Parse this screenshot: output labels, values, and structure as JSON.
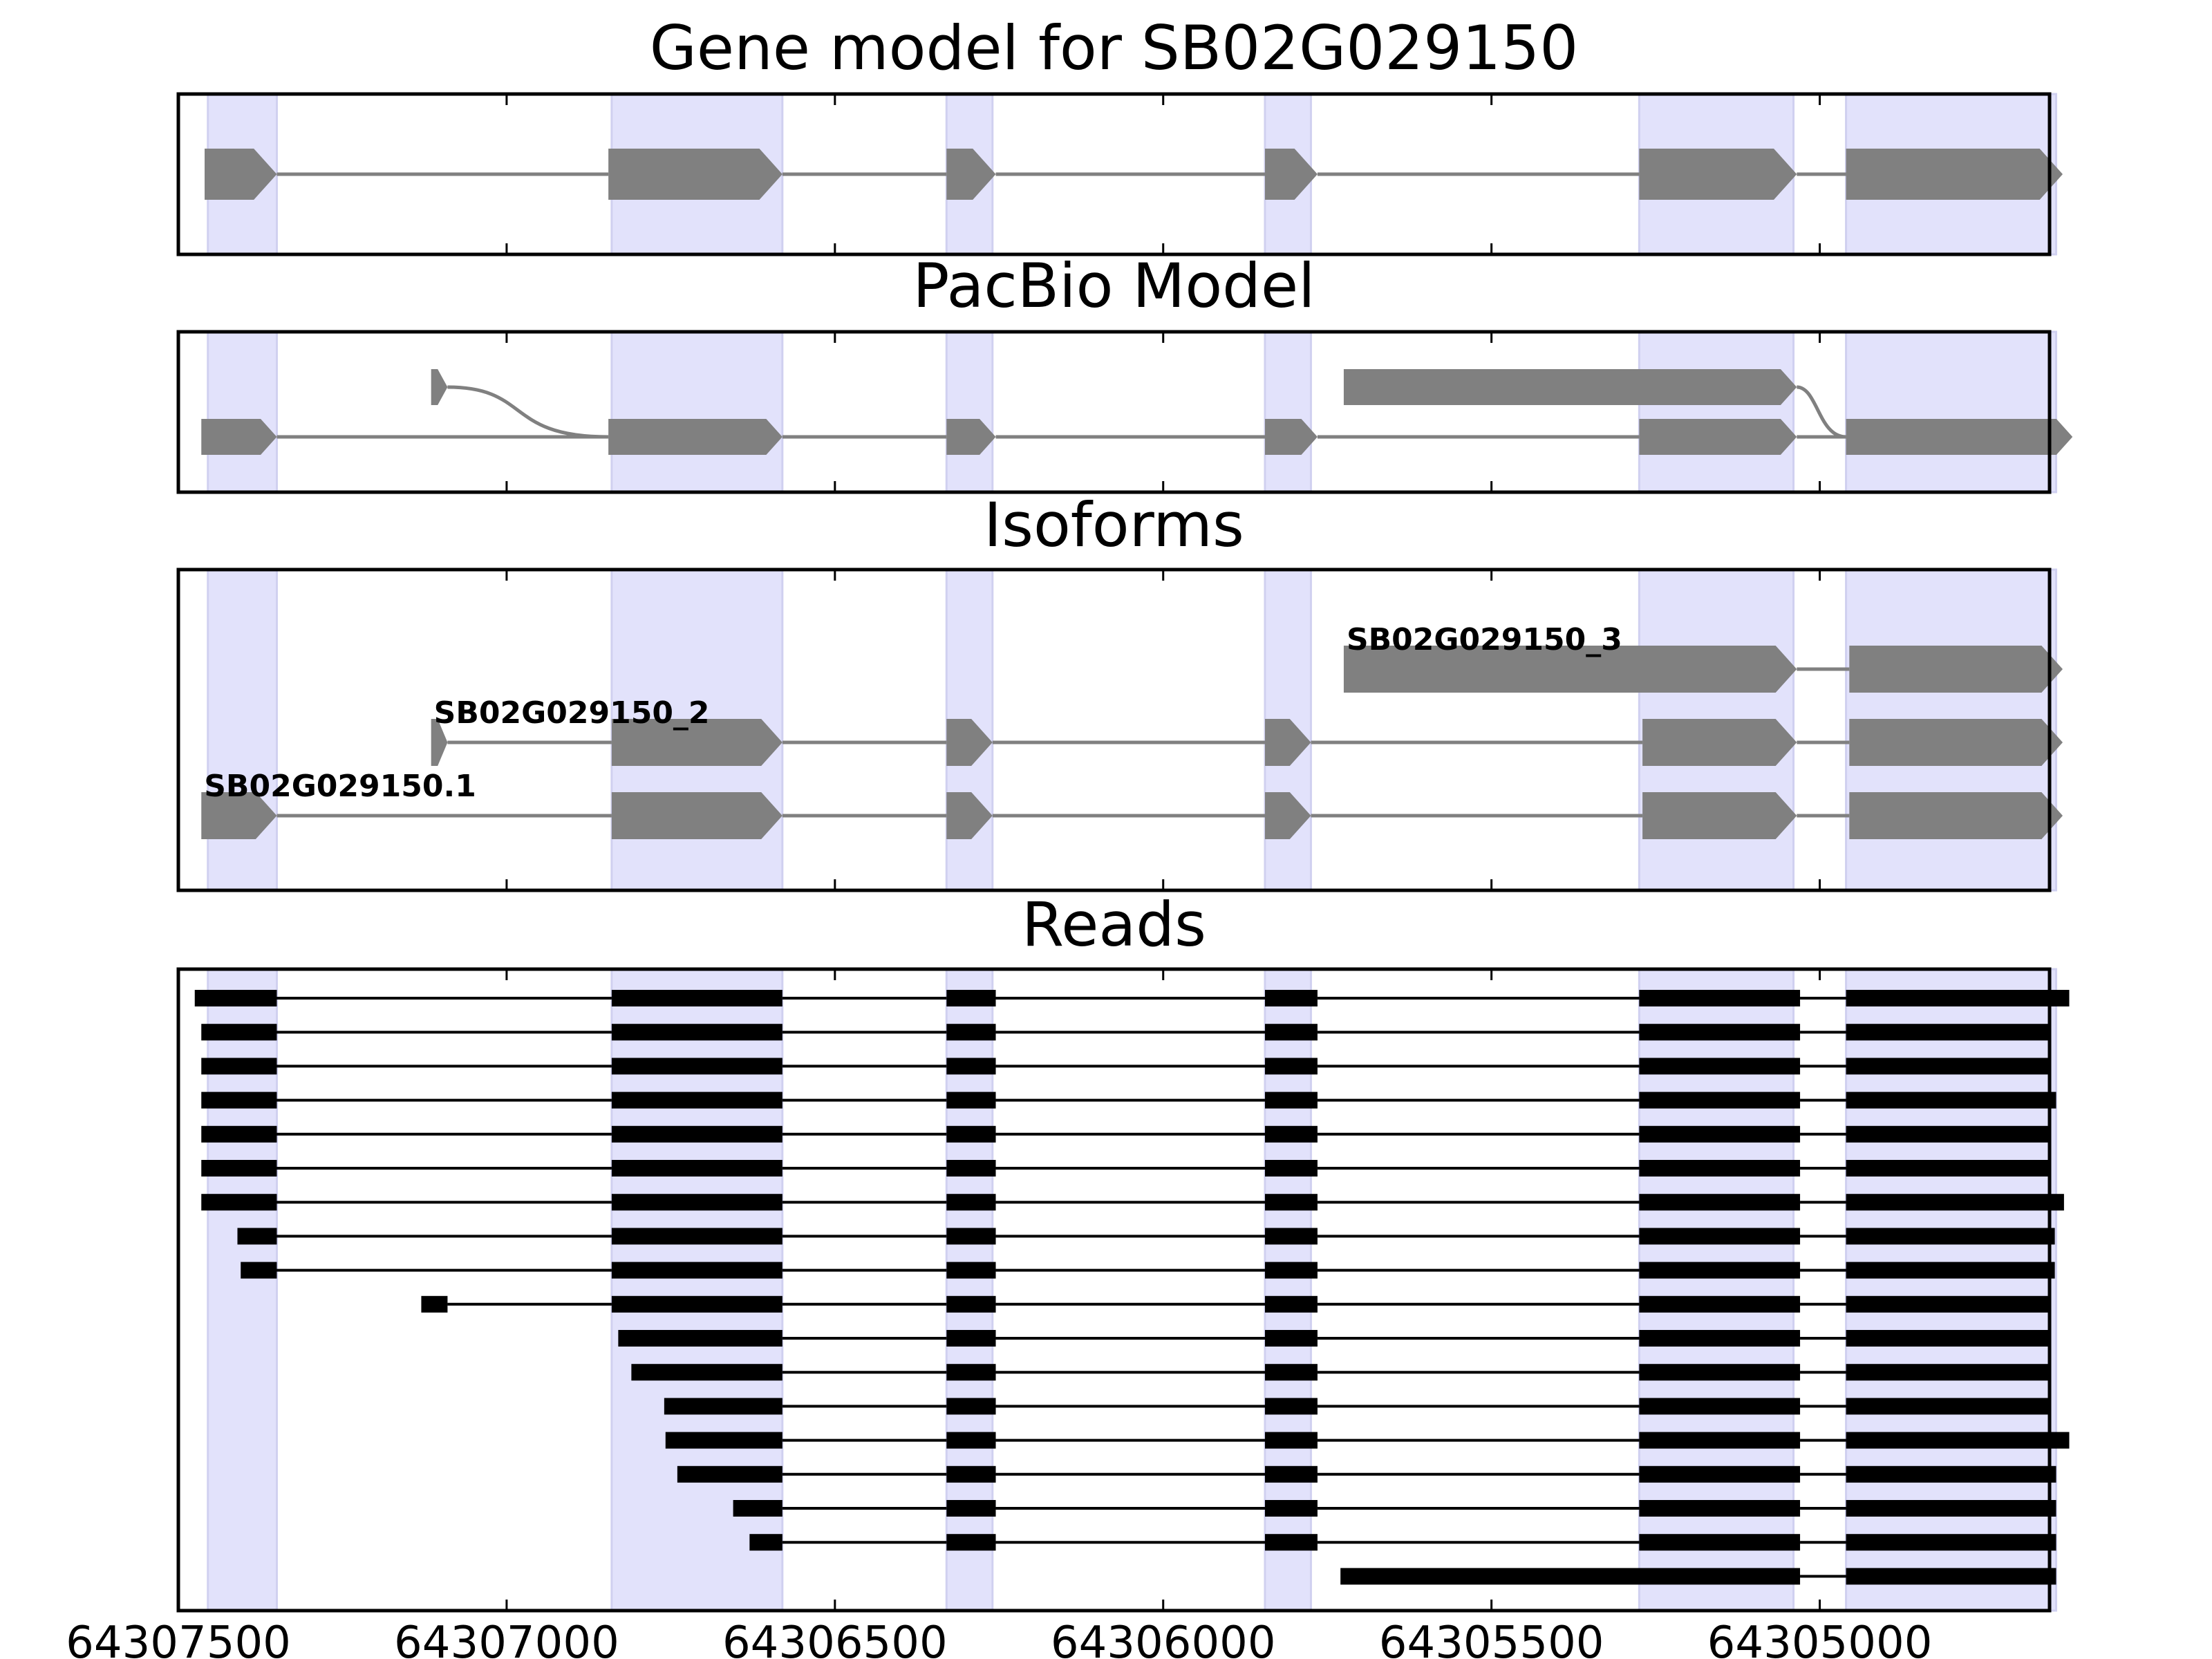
{
  "colors": {
    "exon_band": "#e2e2fb",
    "exon_band_edge": "#d0d0f0",
    "model_feature": "#808080",
    "read": "#000000",
    "frame": "#000000"
  },
  "chart_data": {
    "type": "gene-track",
    "x_axis": {
      "range": [
        64307500,
        64304650
      ],
      "reversed": true,
      "ticks": [
        64307500,
        64307000,
        64306500,
        64306000,
        64305500,
        64305000
      ],
      "tick_labels": [
        "64307500",
        "64307000",
        "64306500",
        "64306000",
        "64305500",
        "64305000"
      ]
    },
    "exon_regions": [
      [
        64307455,
        64307350
      ],
      [
        64306840,
        64306580
      ],
      [
        64306330,
        64306260
      ],
      [
        64305845,
        64305775
      ],
      [
        64305275,
        64305040
      ],
      [
        64304960,
        64304640
      ]
    ],
    "panels": [
      {
        "title": "Gene model for SB02G029150",
        "transcripts": [
          {
            "label": "",
            "exons": [
              [
                64307460,
                64307350
              ],
              [
                64306845,
                64306580
              ],
              [
                64306330,
                64306255
              ],
              [
                64305845,
                64305765
              ],
              [
                64305275,
                64305035
              ],
              [
                64304960,
                64304630
              ]
            ]
          }
        ]
      },
      {
        "title": "PacBio Model",
        "transcripts": [
          {
            "label": "",
            "exons": [
              [
                64307465,
                64307350
              ],
              [
                64306845,
                64306580
              ],
              [
                64306330,
                64306255
              ],
              [
                64305845,
                64305765
              ],
              [
                64305275,
                64305035
              ],
              [
                64304960,
                64304615
              ]
            ]
          },
          {
            "label": "",
            "exons": [
              [
                64307115,
                64307090
              ],
              [
                64305725,
                64305035
              ]
            ]
          }
        ]
      },
      {
        "title": "Isoforms",
        "transcripts": [
          {
            "label": "SB02G029150.1",
            "exons": [
              [
                64307465,
                64307350
              ],
              [
                64306840,
                64306580
              ],
              [
                64306330,
                64306260
              ],
              [
                64305845,
                64305775
              ],
              [
                64305270,
                64305035
              ],
              [
                64304955,
                64304630
              ]
            ]
          },
          {
            "label": "SB02G029150_2",
            "exons": [
              [
                64307115,
                64307090
              ],
              [
                64306840,
                64306580
              ],
              [
                64306330,
                64306260
              ],
              [
                64305845,
                64305775
              ],
              [
                64305270,
                64305035
              ],
              [
                64304955,
                64304630
              ]
            ]
          },
          {
            "label": "SB02G029150_3",
            "exons": [
              [
                64305725,
                64305035
              ],
              [
                64304955,
                64304630
              ]
            ]
          }
        ]
      },
      {
        "title": "Reads",
        "reads": [
          {
            "exons": [
              [
                64307475,
                64307350
              ],
              [
                64306840,
                64306580
              ],
              [
                64306330,
                64306255
              ],
              [
                64305845,
                64305765
              ],
              [
                64305275,
                64305030
              ],
              [
                64304960,
                64304620
              ]
            ]
          },
          {
            "exons": [
              [
                64307465,
                64307350
              ],
              [
                64306840,
                64306580
              ],
              [
                64306330,
                64306255
              ],
              [
                64305845,
                64305765
              ],
              [
                64305275,
                64305030
              ],
              [
                64304960,
                64304650
              ]
            ]
          },
          {
            "exons": [
              [
                64307465,
                64307350
              ],
              [
                64306840,
                64306580
              ],
              [
                64306330,
                64306255
              ],
              [
                64305845,
                64305765
              ],
              [
                64305275,
                64305030
              ],
              [
                64304960,
                64304648
              ]
            ]
          },
          {
            "exons": [
              [
                64307465,
                64307350
              ],
              [
                64306840,
                64306580
              ],
              [
                64306330,
                64306255
              ],
              [
                64305845,
                64305765
              ],
              [
                64305275,
                64305030
              ],
              [
                64304960,
                64304640
              ]
            ]
          },
          {
            "exons": [
              [
                64307465,
                64307350
              ],
              [
                64306840,
                64306580
              ],
              [
                64306330,
                64306255
              ],
              [
                64305845,
                64305765
              ],
              [
                64305275,
                64305030
              ],
              [
                64304960,
                64304652
              ]
            ]
          },
          {
            "exons": [
              [
                64307465,
                64307350
              ],
              [
                64306840,
                64306580
              ],
              [
                64306330,
                64306255
              ],
              [
                64305845,
                64305765
              ],
              [
                64305275,
                64305030
              ],
              [
                64304960,
                64304652
              ]
            ]
          },
          {
            "exons": [
              [
                64307465,
                64307350
              ],
              [
                64306840,
                64306580
              ],
              [
                64306330,
                64306255
              ],
              [
                64305845,
                64305765
              ],
              [
                64305275,
                64305030
              ],
              [
                64304960,
                64304628
              ]
            ]
          },
          {
            "exons": [
              [
                64307410,
                64307350
              ],
              [
                64306840,
                64306580
              ],
              [
                64306330,
                64306255
              ],
              [
                64305845,
                64305765
              ],
              [
                64305275,
                64305030
              ],
              [
                64304960,
                64304642
              ]
            ]
          },
          {
            "exons": [
              [
                64307405,
                64307350
              ],
              [
                64306840,
                64306580
              ],
              [
                64306330,
                64306255
              ],
              [
                64305845,
                64305765
              ],
              [
                64305275,
                64305030
              ],
              [
                64304960,
                64304642
              ]
            ]
          },
          {
            "exons": [
              [
                64307130,
                64307090
              ],
              [
                64306840,
                64306580
              ],
              [
                64306330,
                64306255
              ],
              [
                64305845,
                64305765
              ],
              [
                64305275,
                64305030
              ],
              [
                64304960,
                64304650
              ]
            ]
          },
          {
            "exons": [
              [
                64306830,
                64306580
              ],
              [
                64306330,
                64306255
              ],
              [
                64305845,
                64305765
              ],
              [
                64305275,
                64305030
              ],
              [
                64304960,
                64304648
              ]
            ]
          },
          {
            "exons": [
              [
                64306810,
                64306580
              ],
              [
                64306330,
                64306255
              ],
              [
                64305845,
                64305765
              ],
              [
                64305275,
                64305030
              ],
              [
                64304960,
                64304650
              ]
            ]
          },
          {
            "exons": [
              [
                64306760,
                64306580
              ],
              [
                64306330,
                64306255
              ],
              [
                64305845,
                64305765
              ],
              [
                64305275,
                64305030
              ],
              [
                64304960,
                64304648
              ]
            ]
          },
          {
            "exons": [
              [
                64306758,
                64306580
              ],
              [
                64306330,
                64306255
              ],
              [
                64305845,
                64305765
              ],
              [
                64305275,
                64305030
              ],
              [
                64304960,
                64304620
              ]
            ]
          },
          {
            "exons": [
              [
                64306740,
                64306580
              ],
              [
                64306330,
                64306255
              ],
              [
                64305845,
                64305765
              ],
              [
                64305275,
                64305030
              ],
              [
                64304960,
                64304640
              ]
            ]
          },
          {
            "exons": [
              [
                64306655,
                64306580
              ],
              [
                64306330,
                64306255
              ],
              [
                64305845,
                64305765
              ],
              [
                64305275,
                64305030
              ],
              [
                64304960,
                64304640
              ]
            ]
          },
          {
            "exons": [
              [
                64306630,
                64306580
              ],
              [
                64306330,
                64306255
              ],
              [
                64305845,
                64305765
              ],
              [
                64305275,
                64305030
              ],
              [
                64304960,
                64304640
              ]
            ]
          },
          {
            "exons": [
              [
                64305730,
                64305030
              ],
              [
                64304960,
                64304640
              ]
            ]
          }
        ]
      }
    ]
  }
}
